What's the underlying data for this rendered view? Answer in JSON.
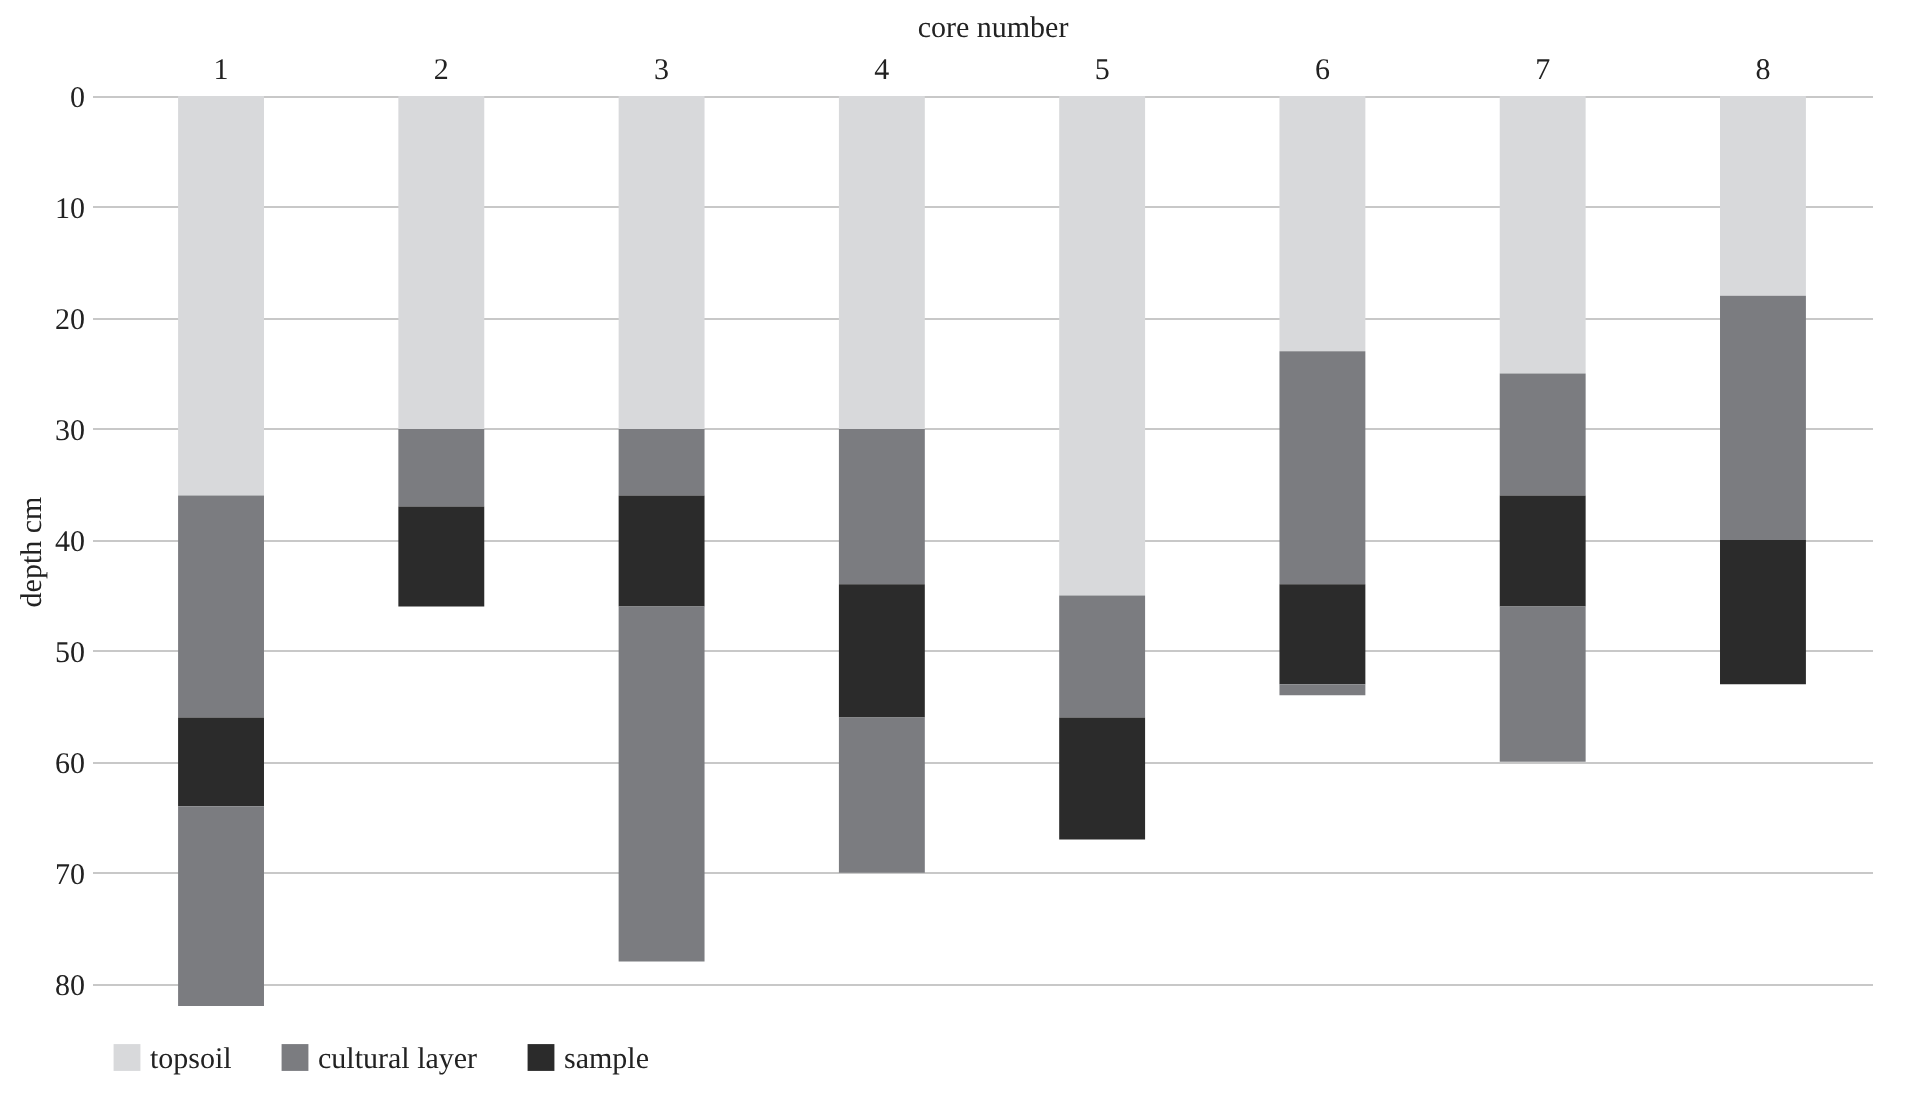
{
  "chart_data": {
    "type": "bar",
    "stacked": true,
    "xlabel": "core number",
    "ylabel": "depth cm",
    "categories": [
      "1",
      "2",
      "3",
      "4",
      "5",
      "6",
      "7",
      "8"
    ],
    "ylim": [
      82,
      0
    ],
    "yticks": [
      0,
      10,
      20,
      30,
      40,
      50,
      60,
      70,
      80
    ],
    "grid": "y",
    "legend": "bottom",
    "series": [
      {
        "name": "topsoil",
        "color": "#d8d9db",
        "values": [
          36,
          30,
          30,
          30,
          45,
          23,
          25,
          18
        ]
      },
      {
        "name": "cultural layer",
        "color": "#7b7c80",
        "values": [
          20,
          7,
          6,
          14,
          11,
          21,
          11,
          22
        ]
      },
      {
        "name": "sample",
        "color": "#2b2b2b",
        "values": [
          8,
          9,
          10,
          12,
          11,
          9,
          10,
          13
        ]
      },
      {
        "color": "#7b7c80",
        "values": [
          18,
          0,
          32,
          14,
          0,
          1,
          14,
          0
        ]
      }
    ]
  }
}
